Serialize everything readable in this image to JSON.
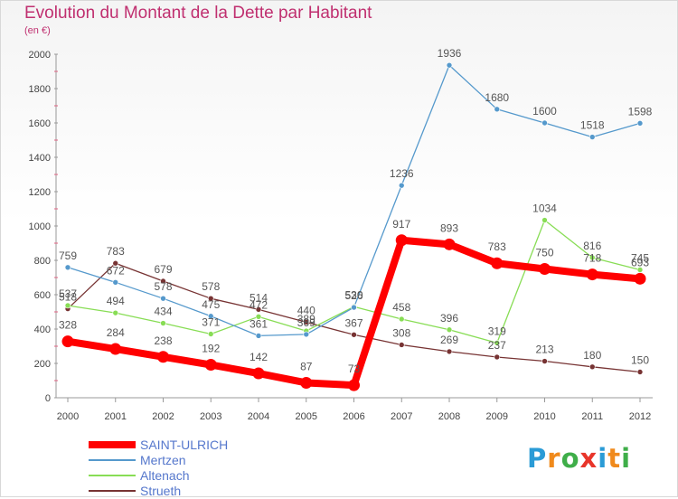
{
  "title": "Evolution du Montant de la Dette par Habitant",
  "unit": "(en €)",
  "logo": "Proxiti",
  "logo_colors": [
    "#2a9bd6",
    "#f08a1c",
    "#3fae49",
    "#e8352a",
    "#2a9bd6",
    "#f08a1c",
    "#3fae49"
  ],
  "chart_data": {
    "type": "line",
    "title": "Evolution du Montant de la Dette par Habitant",
    "ylabel": "(en €)",
    "xlabel": "",
    "ylim": [
      0,
      2000
    ],
    "yticks": [
      0,
      200,
      400,
      600,
      800,
      1000,
      1200,
      1400,
      1600,
      1800,
      2000
    ],
    "grid": false,
    "legend_position": "bottom-left",
    "x": [
      "2000",
      "2001",
      "2002",
      "2003",
      "2004",
      "2005",
      "2006",
      "2007",
      "2008",
      "2009",
      "2010",
      "2011",
      "2012"
    ],
    "series": [
      {
        "name": "SAINT-ULRICH",
        "color": "#ff0000",
        "values": [
          328,
          284,
          238,
          192,
          142,
          87,
          73,
          917,
          893,
          783,
          750,
          718,
          693
        ]
      },
      {
        "name": "Mertzen",
        "color": "#5599cc",
        "values": [
          759,
          672,
          578,
          475,
          361,
          369,
          526,
          1236,
          1936,
          1680,
          1600,
          1518,
          1598
        ]
      },
      {
        "name": "Altenach",
        "color": "#88dd55",
        "values": [
          537,
          494,
          434,
          371,
          472,
          389,
          530,
          458,
          396,
          319,
          1034,
          816,
          745
        ]
      },
      {
        "name": "Strueth",
        "color": "#773333",
        "values": [
          518,
          783,
          679,
          578,
          514,
          440,
          367,
          308,
          269,
          237,
          213,
          180,
          150
        ]
      }
    ]
  }
}
